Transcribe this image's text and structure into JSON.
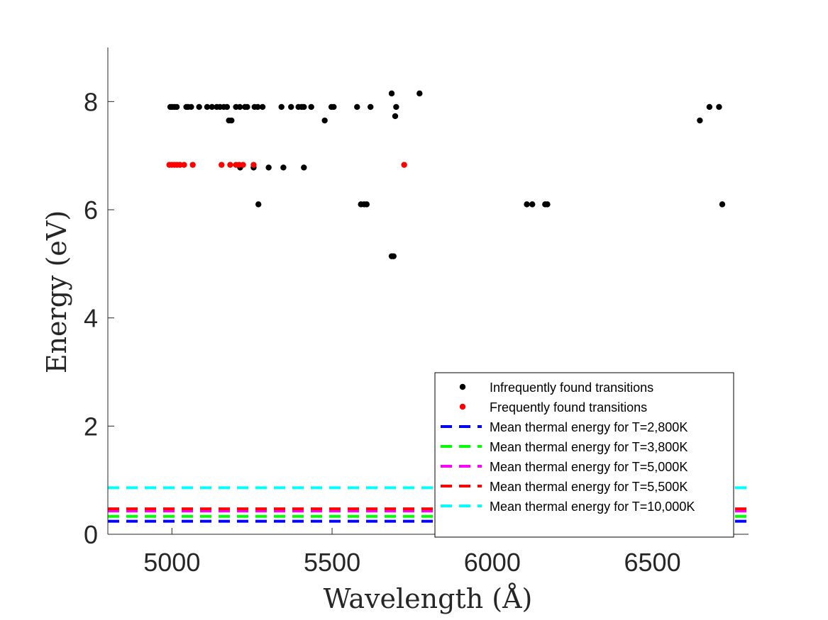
{
  "chart_data": {
    "type": "scatter",
    "title": "",
    "xlabel": "Wavelength (Å)",
    "ylabel": "Energy (eV)",
    "xlim": [
      4800,
      6800
    ],
    "ylim": [
      0,
      9
    ],
    "xticks": [
      5000,
      5500,
      6000,
      6500
    ],
    "yticks": [
      0,
      2,
      4,
      6,
      8
    ],
    "grid": false,
    "legend_position": "bottom-right",
    "series": [
      {
        "name": "Infrequently found transitions",
        "kind": "points",
        "color": "#000000",
        "points": [
          [
            4995,
            7.9
          ],
          [
            5001,
            7.9
          ],
          [
            5008,
            7.9
          ],
          [
            5015,
            7.9
          ],
          [
            5045,
            7.9
          ],
          [
            5050,
            7.9
          ],
          [
            5060,
            7.9
          ],
          [
            5085,
            7.9
          ],
          [
            5110,
            7.9
          ],
          [
            5125,
            7.9
          ],
          [
            5140,
            7.9
          ],
          [
            5150,
            7.9
          ],
          [
            5162,
            7.9
          ],
          [
            5172,
            7.9
          ],
          [
            5178,
            7.65
          ],
          [
            5186,
            7.65
          ],
          [
            5200,
            7.9
          ],
          [
            5212,
            7.9
          ],
          [
            5228,
            7.9
          ],
          [
            5235,
            7.9
          ],
          [
            5258,
            7.9
          ],
          [
            5268,
            7.9
          ],
          [
            5283,
            7.9
          ],
          [
            5342,
            7.9
          ],
          [
            5372,
            7.9
          ],
          [
            5395,
            7.9
          ],
          [
            5405,
            7.9
          ],
          [
            5412,
            7.9
          ],
          [
            5435,
            7.9
          ],
          [
            5477,
            7.65
          ],
          [
            5498,
            7.9
          ],
          [
            5505,
            7.9
          ],
          [
            5578,
            7.9
          ],
          [
            5620,
            7.9
          ],
          [
            5686,
            8.15
          ],
          [
            5700,
            7.9
          ],
          [
            5697,
            7.73
          ],
          [
            5773,
            8.15
          ],
          [
            5213,
            6.78
          ],
          [
            5255,
            6.78
          ],
          [
            5302,
            6.78
          ],
          [
            5348,
            6.78
          ],
          [
            5412,
            6.78
          ],
          [
            5270,
            6.1
          ],
          [
            5590,
            6.1
          ],
          [
            5600,
            6.1
          ],
          [
            5608,
            6.1
          ],
          [
            5686,
            5.14
          ],
          [
            5692,
            5.14
          ],
          [
            6108,
            6.1
          ],
          [
            6125,
            6.1
          ],
          [
            6165,
            6.1
          ],
          [
            6172,
            6.1
          ],
          [
            6648,
            7.65
          ],
          [
            6678,
            7.9
          ],
          [
            6708,
            7.9
          ],
          [
            6718,
            6.1
          ]
        ]
      },
      {
        "name": "Frequently found transitions",
        "kind": "points",
        "color": "#ff0000",
        "points": [
          [
            4992,
            6.83
          ],
          [
            5000,
            6.83
          ],
          [
            5008,
            6.83
          ],
          [
            5016,
            6.83
          ],
          [
            5025,
            6.83
          ],
          [
            5038,
            6.83
          ],
          [
            5065,
            6.83
          ],
          [
            5155,
            6.83
          ],
          [
            5182,
            6.83
          ],
          [
            5200,
            6.83
          ],
          [
            5210,
            6.83
          ],
          [
            5222,
            6.83
          ],
          [
            5255,
            6.83
          ],
          [
            5725,
            6.83
          ]
        ]
      },
      {
        "name": "Mean thermal energy for T=2,800K",
        "kind": "hline",
        "color": "#0000ff",
        "value": 0.24
      },
      {
        "name": "Mean thermal energy for T=3,800K",
        "kind": "hline",
        "color": "#00ff00",
        "value": 0.33
      },
      {
        "name": "Mean thermal energy for T=5,000K",
        "kind": "hline",
        "color": "#ff00ff",
        "value": 0.43
      },
      {
        "name": "Mean thermal energy for T=5,500K",
        "kind": "hline",
        "color": "#ff0000",
        "value": 0.47
      },
      {
        "name": "Mean thermal energy for T=10,000K",
        "kind": "hline",
        "color": "#00ffff",
        "value": 0.86
      }
    ]
  }
}
